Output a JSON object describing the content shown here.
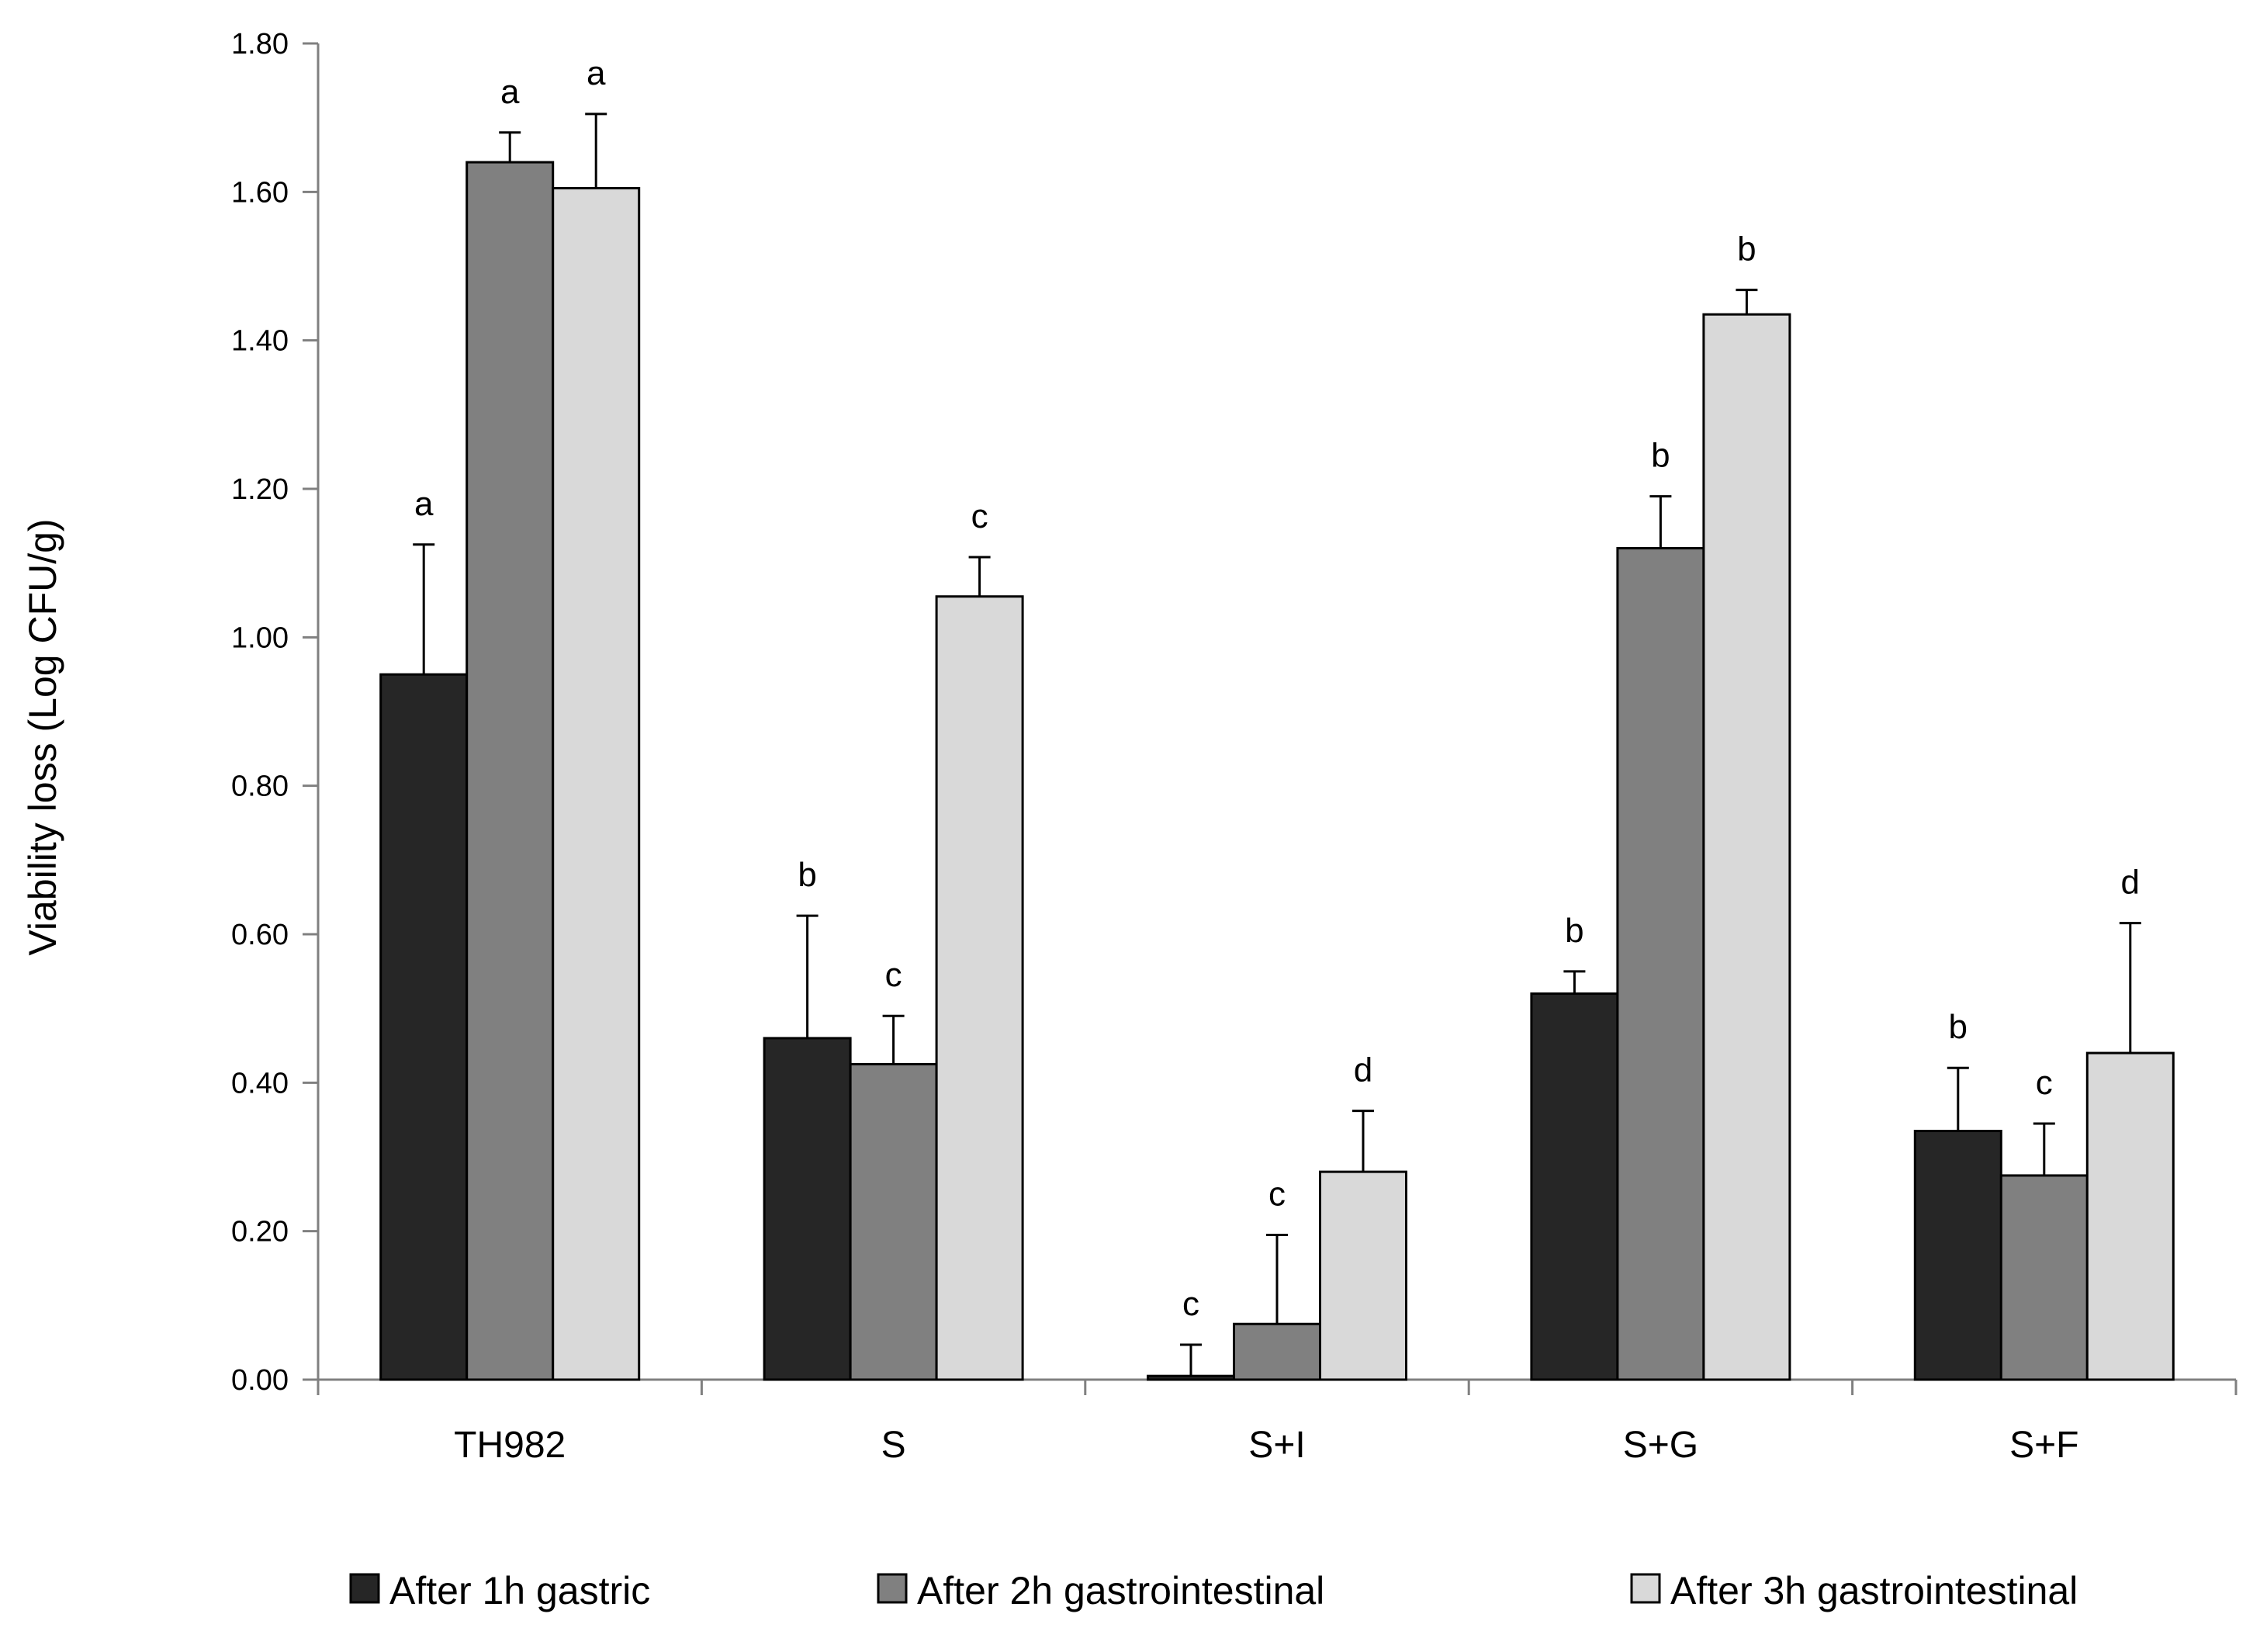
{
  "chart_data": {
    "type": "bar",
    "title": "",
    "xlabel": "",
    "ylabel": "Viability loss (Log CFU/g)",
    "ylim": [
      0,
      1.8
    ],
    "yticks": [
      "0.00",
      "0.20",
      "0.40",
      "0.60",
      "0.80",
      "1.00",
      "1.20",
      "1.40",
      "1.60",
      "1.80"
    ],
    "grid": false,
    "legend_position": "bottom",
    "categories": [
      "TH982",
      "S",
      "S+I",
      "S+G",
      "S+F"
    ],
    "series": [
      {
        "name": "After 1h gastric",
        "color": "#262626",
        "values": [
          0.95,
          0.46,
          0.005,
          0.52,
          0.335
        ],
        "errors": [
          0.175,
          0.165,
          0.042,
          0.03,
          0.085
        ],
        "significance": [
          "a",
          "b",
          "c",
          "b",
          "b"
        ]
      },
      {
        "name": "After 2h gastrointestinal",
        "color": "#808080",
        "values": [
          1.64,
          0.425,
          0.075,
          1.12,
          0.275
        ],
        "errors": [
          0.04,
          0.065,
          0.12,
          0.07,
          0.07
        ],
        "significance": [
          "a",
          "c",
          "c",
          "b",
          "c"
        ]
      },
      {
        "name": "After 3h gastrointestinal",
        "color": "#d9d9d9",
        "values": [
          1.605,
          1.055,
          0.28,
          1.435,
          0.44
        ],
        "errors": [
          0.1,
          0.053,
          0.082,
          0.033,
          0.175
        ],
        "significance": [
          "a",
          "c",
          "d",
          "b",
          "d"
        ]
      }
    ]
  }
}
